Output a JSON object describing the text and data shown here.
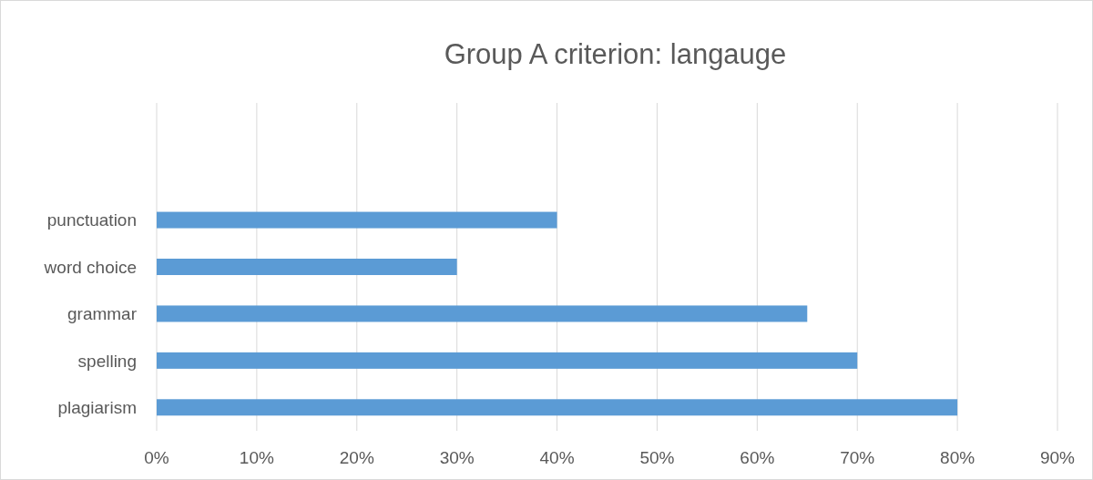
{
  "chart_data": {
    "type": "bar",
    "orientation": "horizontal",
    "title": "Group A criterion: langauge",
    "categories": [
      null,
      null,
      "punctuation",
      "word choice",
      "grammar",
      "spelling",
      "plagiarism"
    ],
    "values": [
      null,
      null,
      40,
      30,
      65,
      70,
      80
    ],
    "color": "#5b9bd5",
    "xlim": [
      0,
      90
    ],
    "xticks": [
      {
        "value": 0,
        "label": "0%"
      },
      {
        "value": 10,
        "label": "10%"
      },
      {
        "value": 20,
        "label": "20%"
      },
      {
        "value": 30,
        "label": "30%"
      },
      {
        "value": 40,
        "label": "40%"
      },
      {
        "value": 50,
        "label": "50%"
      },
      {
        "value": 60,
        "label": "60%"
      },
      {
        "value": 70,
        "label": "70%"
      },
      {
        "value": 80,
        "label": "80%"
      },
      {
        "value": 90,
        "label": "90%"
      }
    ],
    "grid": "x"
  }
}
